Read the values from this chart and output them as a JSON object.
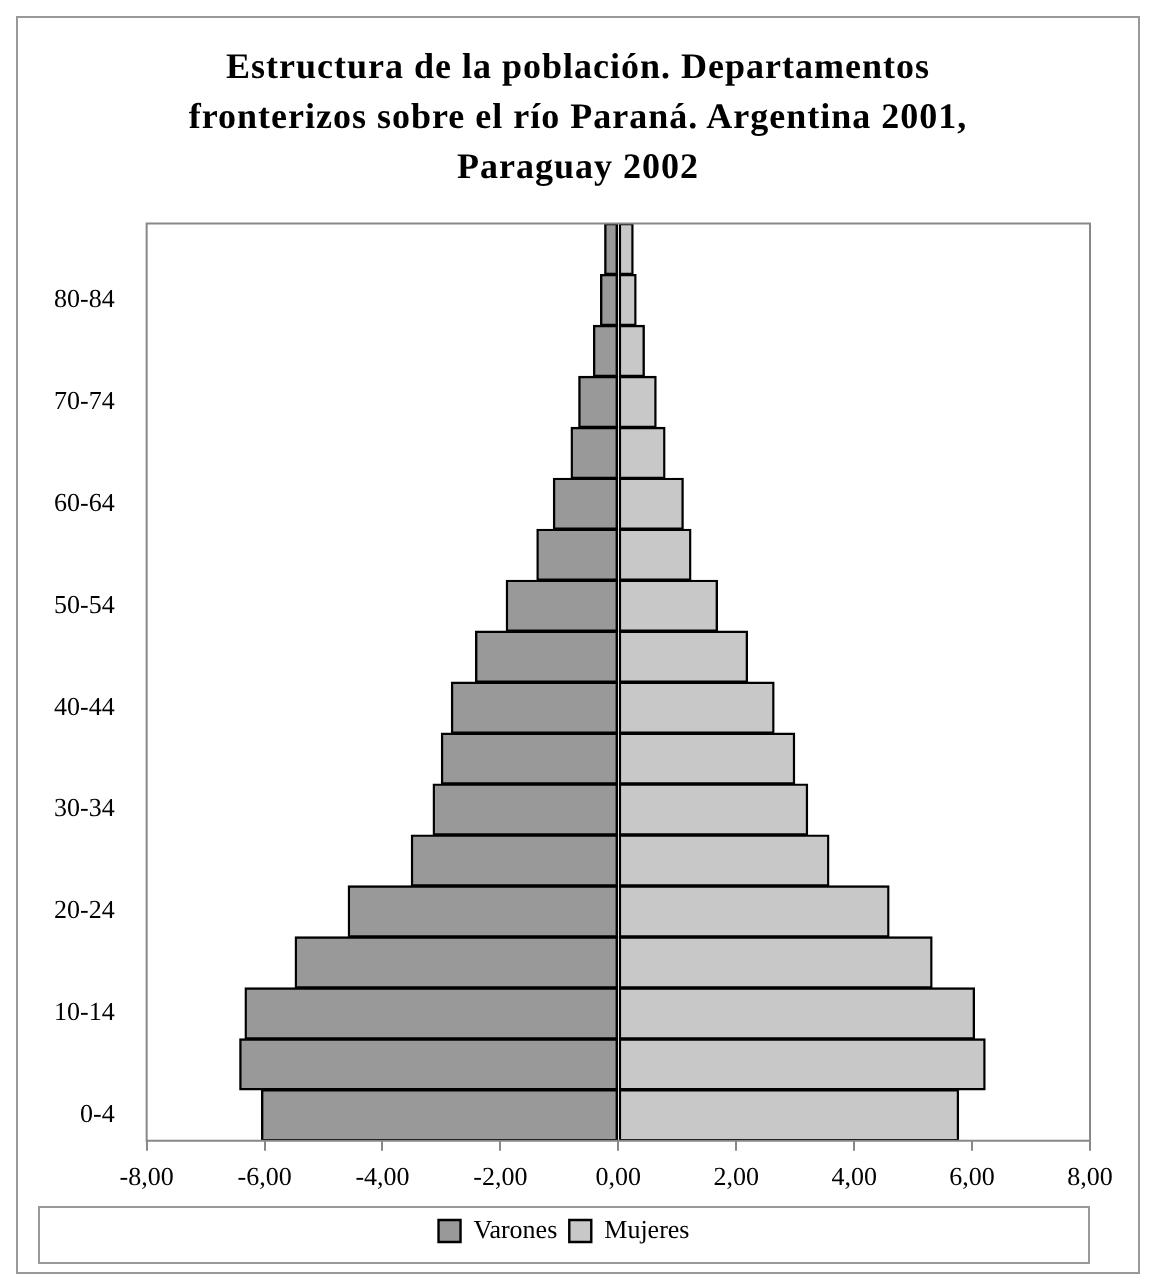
{
  "chart_data": {
    "type": "bar",
    "orientation": "horizontal",
    "stacked": true,
    "title": "Estructura de la población. Departamentos fronterizos sobre el río Paraná. Argentina 2001, Paraguay 2002",
    "categories": [
      null,
      "80-84",
      null,
      "70-74",
      null,
      "60-64",
      null,
      "50-54",
      null,
      "40-44",
      null,
      "30-34",
      null,
      "20-24",
      null,
      "10-14",
      null,
      "0-4"
    ],
    "series": [
      {
        "name": "Varones",
        "color": "#999999",
        "values": [
          -0.23,
          -0.3,
          -0.42,
          -0.67,
          -0.8,
          -1.1,
          -1.38,
          -1.9,
          -2.42,
          -2.83,
          -3.0,
          -3.14,
          -3.51,
          -4.58,
          -5.48,
          -6.33,
          -6.42,
          -6.05
        ]
      },
      {
        "name": "Mujeres",
        "color": "#c8c8c8",
        "values": [
          0.25,
          0.3,
          0.44,
          0.64,
          0.79,
          1.1,
          1.23,
          1.68,
          2.19,
          2.64,
          2.99,
          3.21,
          3.57,
          4.59,
          5.32,
          6.04,
          6.22,
          5.77
        ]
      }
    ],
    "xlim": [
      -8,
      8
    ],
    "xticks": [
      {
        "value": -8,
        "label": "-8,00"
      },
      {
        "value": -6,
        "label": "-6,00"
      },
      {
        "value": -4,
        "label": "-4,00"
      },
      {
        "value": -2,
        "label": "-2,00"
      },
      {
        "value": 0,
        "label": "0,00"
      },
      {
        "value": 2,
        "label": "2,00"
      },
      {
        "value": 4,
        "label": "4,00"
      },
      {
        "value": 6,
        "label": "6,00"
      },
      {
        "value": 8,
        "label": "8,00"
      }
    ],
    "grid": false,
    "legend": "bottom"
  }
}
